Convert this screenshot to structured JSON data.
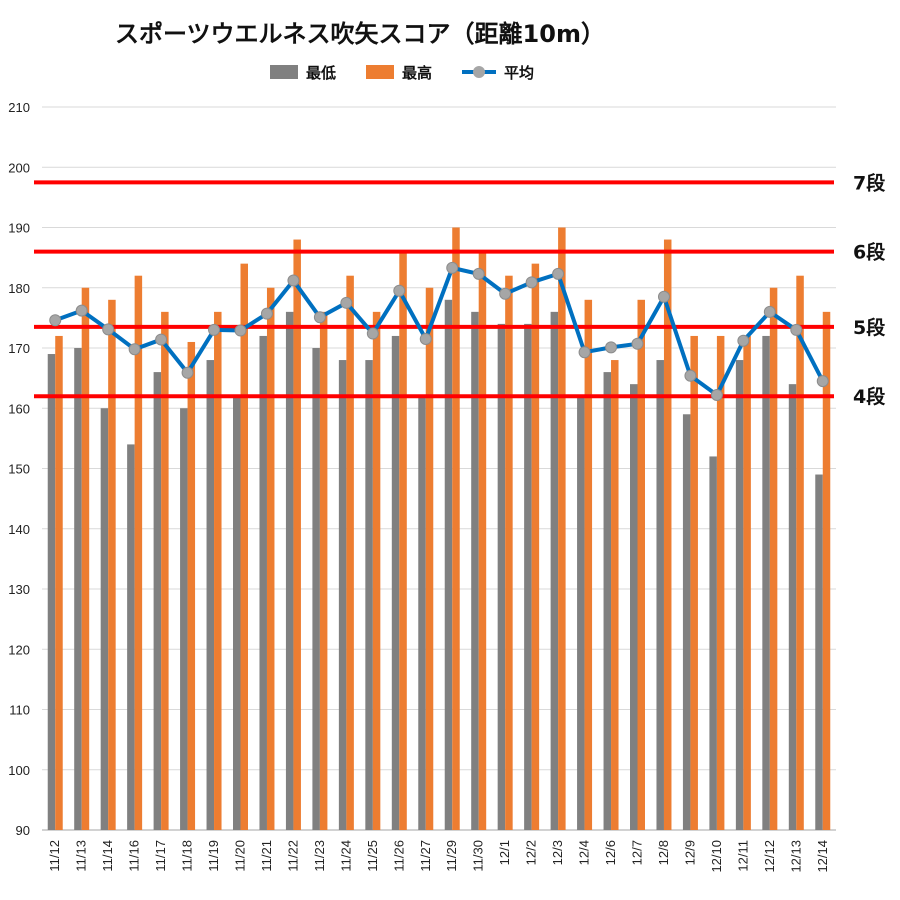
{
  "chart_data": {
    "type": "bar",
    "title": "スポーツウエルネス吹矢スコア（距離10m）",
    "categories": [
      "11/12",
      "11/13",
      "11/14",
      "11/16",
      "11/17",
      "11/18",
      "11/19",
      "11/20",
      "11/21",
      "11/22",
      "11/23",
      "11/24",
      "11/25",
      "11/26",
      "11/27",
      "11/29",
      "11/30",
      "12/1",
      "12/2",
      "12/3",
      "12/4",
      "12/6",
      "12/7",
      "12/8",
      "12/9",
      "12/10",
      "12/11",
      "12/12",
      "12/13",
      "12/14"
    ],
    "series": [
      {
        "name": "最低",
        "type": "bar",
        "color": "#808080",
        "values": [
          169,
          170,
          160,
          154,
          166,
          160,
          168,
          162,
          172,
          176,
          170,
          168,
          168,
          172,
          162,
          178,
          176,
          174,
          174,
          176,
          162,
          166,
          164,
          168,
          159,
          152,
          168,
          172,
          164,
          149
        ]
      },
      {
        "name": "最高",
        "type": "bar",
        "color": "#ED7D31",
        "values": [
          172,
          180,
          178,
          182,
          176,
          171,
          176,
          184,
          180,
          188,
          176,
          182,
          176,
          186,
          180,
          190,
          186,
          182,
          184,
          190,
          178,
          168,
          178,
          188,
          172,
          172,
          172,
          180,
          182,
          176
        ]
      },
      {
        "name": "平均",
        "type": "line",
        "color": "#0070C0",
        "marker_color": "#A6A6A6",
        "values": [
          174.6,
          176.2,
          173.1,
          169.8,
          171.4,
          165.9,
          173.0,
          172.9,
          175.7,
          181.2,
          175.1,
          177.5,
          172.4,
          179.5,
          171.5,
          183.3,
          182.3,
          179.0,
          180.9,
          182.3,
          169.3,
          170.1,
          170.7,
          178.5,
          165.4,
          162.2,
          171.2,
          176.0,
          173.0,
          164.5
        ]
      }
    ],
    "xlabel": "",
    "ylabel": "",
    "ylim": [
      90,
      210
    ],
    "yticks": [
      90,
      100,
      110,
      120,
      130,
      140,
      150,
      160,
      170,
      180,
      190,
      200,
      210
    ],
    "grid": true,
    "legend_position": "top",
    "reference_lines": [
      {
        "label": "7段",
        "value": 197.5,
        "color": "#FF0000"
      },
      {
        "label": "6段",
        "value": 186,
        "color": "#FF0000"
      },
      {
        "label": "5段",
        "value": 173.5,
        "color": "#FF0000"
      },
      {
        "label": "4段",
        "value": 162,
        "color": "#FF0000"
      }
    ]
  }
}
